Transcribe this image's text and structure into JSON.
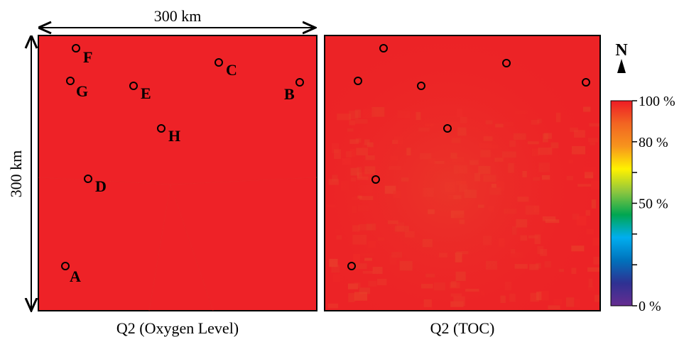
{
  "scale": {
    "width_label": "300 km",
    "height_label": "300 km"
  },
  "panels": [
    {
      "id": "oxygen",
      "caption": "Q2 (Oxygen Level)",
      "fill_color": "#ee2227",
      "points": [
        {
          "label": "F"
        },
        {
          "label": "C"
        },
        {
          "label": "G"
        },
        {
          "label": "E"
        },
        {
          "label": "B"
        },
        {
          "label": "H"
        },
        {
          "label": "D"
        },
        {
          "label": "A"
        }
      ]
    },
    {
      "id": "toc",
      "caption": "Q2 (TOC)",
      "fill_color": "#ec2326",
      "points": [
        {
          "label": ""
        },
        {
          "label": ""
        },
        {
          "label": ""
        },
        {
          "label": ""
        },
        {
          "label": ""
        },
        {
          "label": ""
        },
        {
          "label": ""
        },
        {
          "label": ""
        }
      ]
    }
  ],
  "north_label": "N",
  "colorbar": {
    "stops": [
      "#ee1c25",
      "#f26522",
      "#f7941d",
      "#fff200",
      "#8dc63f",
      "#00a651",
      "#00aeef",
      "#0072bc",
      "#2e3192",
      "#662d91"
    ],
    "ticks": [
      {
        "label": "100 %",
        "value": 1.0
      },
      {
        "label": "80 %",
        "value": 0.8
      },
      {
        "label": "",
        "value": 0.65
      },
      {
        "label": "50 %",
        "value": 0.5
      },
      {
        "label": "",
        "value": 0.35
      },
      {
        "label": "",
        "value": 0.2
      },
      {
        "label": "0 %",
        "value": 0.0
      }
    ]
  }
}
